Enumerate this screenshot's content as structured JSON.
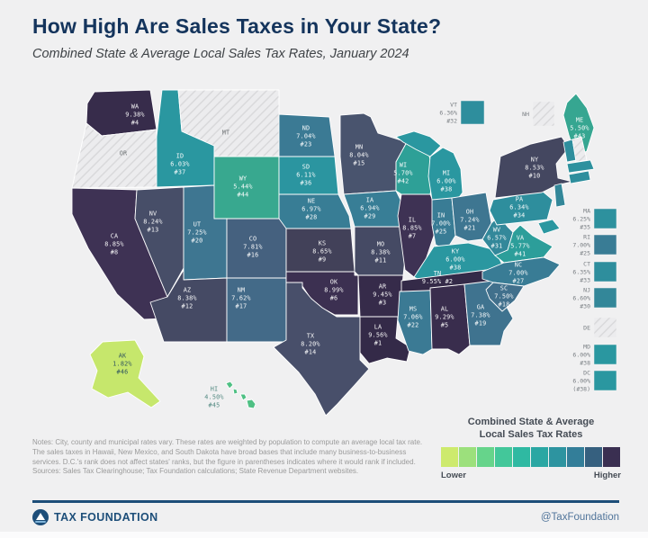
{
  "header": {
    "title": "How High Are Sales Taxes in Your State?",
    "subtitle": "Combined State & Average Local Sales Tax Rates, January 2024"
  },
  "map": {
    "states": [
      {
        "abbr": "WA",
        "rate": "9.38%",
        "rank": "#4",
        "color": "#372c4b"
      },
      {
        "abbr": "OR",
        "no_sales_tax": true
      },
      {
        "abbr": "CA",
        "rate": "8.85%",
        "rank": "#8",
        "color": "#3e3254"
      },
      {
        "abbr": "ID",
        "rate": "6.03%",
        "rank": "#37",
        "color": "#2a97a0"
      },
      {
        "abbr": "NV",
        "rate": "8.24%",
        "rank": "#13",
        "color": "#474e68"
      },
      {
        "abbr": "UT",
        "rate": "7.25%",
        "rank": "#20",
        "color": "#3e7691"
      },
      {
        "abbr": "AZ",
        "rate": "8.38%",
        "rank": "#12",
        "color": "#454a64"
      },
      {
        "abbr": "MT",
        "no_sales_tax": true
      },
      {
        "abbr": "WY",
        "rate": "5.44%",
        "rank": "#44",
        "color": "#38a88f"
      },
      {
        "abbr": "CO",
        "rate": "7.81%",
        "rank": "#16",
        "color": "#45617f"
      },
      {
        "abbr": "NM",
        "rate": "7.62%",
        "rank": "#17",
        "color": "#436a88"
      },
      {
        "abbr": "ND",
        "rate": "7.04%",
        "rank": "#23",
        "color": "#3b7a94"
      },
      {
        "abbr": "SD",
        "rate": "6.11%",
        "rank": "#36",
        "color": "#2b95a0"
      },
      {
        "abbr": "NE",
        "rate": "6.97%",
        "rank": "#28",
        "color": "#387d95"
      },
      {
        "abbr": "KS",
        "rate": "8.65%",
        "rank": "#9",
        "color": "#424159"
      },
      {
        "abbr": "OK",
        "rate": "8.99%",
        "rank": "#6",
        "color": "#3c3051"
      },
      {
        "abbr": "TX",
        "rate": "8.20%",
        "rank": "#14",
        "color": "#484f6a"
      },
      {
        "abbr": "MN",
        "rate": "8.04%",
        "rank": "#15",
        "color": "#49546e"
      },
      {
        "abbr": "IA",
        "rate": "6.94%",
        "rank": "#29",
        "color": "#387e96"
      },
      {
        "abbr": "MO",
        "rate": "8.38%",
        "rank": "#11",
        "color": "#454a64"
      },
      {
        "abbr": "AR",
        "rate": "9.45%",
        "rank": "#3",
        "color": "#362b4a"
      },
      {
        "abbr": "LA",
        "rate": "9.56%",
        "rank": "#1",
        "color": "#342a48"
      },
      {
        "abbr": "WI",
        "rate": "5.70%",
        "rank": "#42",
        "color": "#2ea097"
      },
      {
        "abbr": "IL",
        "rate": "8.85%",
        "rank": "#7",
        "color": "#3e3254"
      },
      {
        "abbr": "MS",
        "rate": "7.06%",
        "rank": "#22",
        "color": "#3b7a94"
      },
      {
        "abbr": "MI",
        "rate": "6.00%",
        "rank": "#38",
        "color": "#2a97a0"
      },
      {
        "abbr": "IN",
        "rate": "7.00%",
        "rank": "#25",
        "color": "#397c95"
      },
      {
        "abbr": "OH",
        "rate": "7.24%",
        "rank": "#21",
        "color": "#3e7691"
      },
      {
        "abbr": "KY",
        "rate": "6.00%",
        "rank": "#38",
        "color": "#2a97a0"
      },
      {
        "abbr": "TN",
        "rate": "9.55%",
        "rank": "#2",
        "color": "#342a48"
      },
      {
        "abbr": "AL",
        "rate": "9.29%",
        "rank": "#5",
        "color": "#392d4d"
      },
      {
        "abbr": "GA",
        "rate": "7.38%",
        "rank": "#19",
        "color": "#3f738f"
      },
      {
        "abbr": "WV",
        "rate": "6.57%",
        "rank": "#31",
        "color": "#33889a"
      },
      {
        "abbr": "VA",
        "rate": "5.77%",
        "rank": "#41",
        "color": "#2c9e9a"
      },
      {
        "abbr": "NC",
        "rate": "7.00%",
        "rank": "#27",
        "color": "#397c95"
      },
      {
        "abbr": "SC",
        "rate": "7.50%",
        "rank": "#18",
        "color": "#41708c"
      },
      {
        "abbr": "FL",
        "rate": "7.00%",
        "rank": "#24",
        "color": "#397c95"
      },
      {
        "abbr": "PA",
        "rate": "6.34%",
        "rank": "#34",
        "color": "#2e8e9d"
      },
      {
        "abbr": "NY",
        "rate": "8.53%",
        "rank": "#10",
        "color": "#44476000"
      },
      {
        "abbr": "ME",
        "rate": "5.50%",
        "rank": "#43",
        "color": "#36a691"
      },
      {
        "abbr": "AK",
        "rate": "1.82%",
        "rank": "#46",
        "color": "#c6e76c"
      },
      {
        "abbr": "HI",
        "rate": "4.50%",
        "rank": "#45",
        "color": "#4fc084"
      }
    ],
    "callouts": [
      {
        "abbr": "VT",
        "rate": "6.36%",
        "rank": "#32",
        "color": "#2e8e9d"
      },
      {
        "abbr": "NH",
        "no_sales_tax": true
      },
      {
        "abbr": "MA",
        "rate": "6.25%",
        "rank": "#35",
        "color": "#2d919e"
      },
      {
        "abbr": "RI",
        "rate": "7.00%",
        "rank": "#25",
        "color": "#397c95"
      },
      {
        "abbr": "CT",
        "rate": "6.35%",
        "rank": "#33",
        "color": "#2e8e9d"
      },
      {
        "abbr": "NJ",
        "rate": "6.60%",
        "rank": "#30",
        "color": "#338799"
      },
      {
        "abbr": "DE",
        "no_sales_tax": true
      },
      {
        "abbr": "MD",
        "rate": "6.00%",
        "rank": "#38",
        "color": "#2a97a0"
      },
      {
        "abbr": "DC",
        "rate": "6.00%",
        "rank": "(#38)",
        "color": "#2a97a0"
      }
    ]
  },
  "legend": {
    "title_line1": "Combined State & Average",
    "title_line2": "Local Sales Tax Rates",
    "lower": "Lower",
    "higher": "Higher",
    "colors": [
      "#cdea6d",
      "#9ce07c",
      "#66d48b",
      "#43c79a",
      "#2fb9a2",
      "#2aa7a3",
      "#2d94a0",
      "#337e99",
      "#36607f",
      "#3a2f51"
    ]
  },
  "notes": "Notes: City, county and municipal rates vary. These rates are weighted by population to compute an average local tax rate. The sales taxes in Hawaii, New Mexico, and South Dakota have broad bases that include many business-to-business services. D.C.'s rank does not affect states' ranks, but the figure in parentheses indicates where it would rank if included. Sources: Sales Tax Clearinghouse; Tax Foundation calculations; State Revenue Department websites.",
  "footer": {
    "brand": "TAX FOUNDATION",
    "handle": "@TaxFoundation",
    "accent": "#1d4e79"
  }
}
